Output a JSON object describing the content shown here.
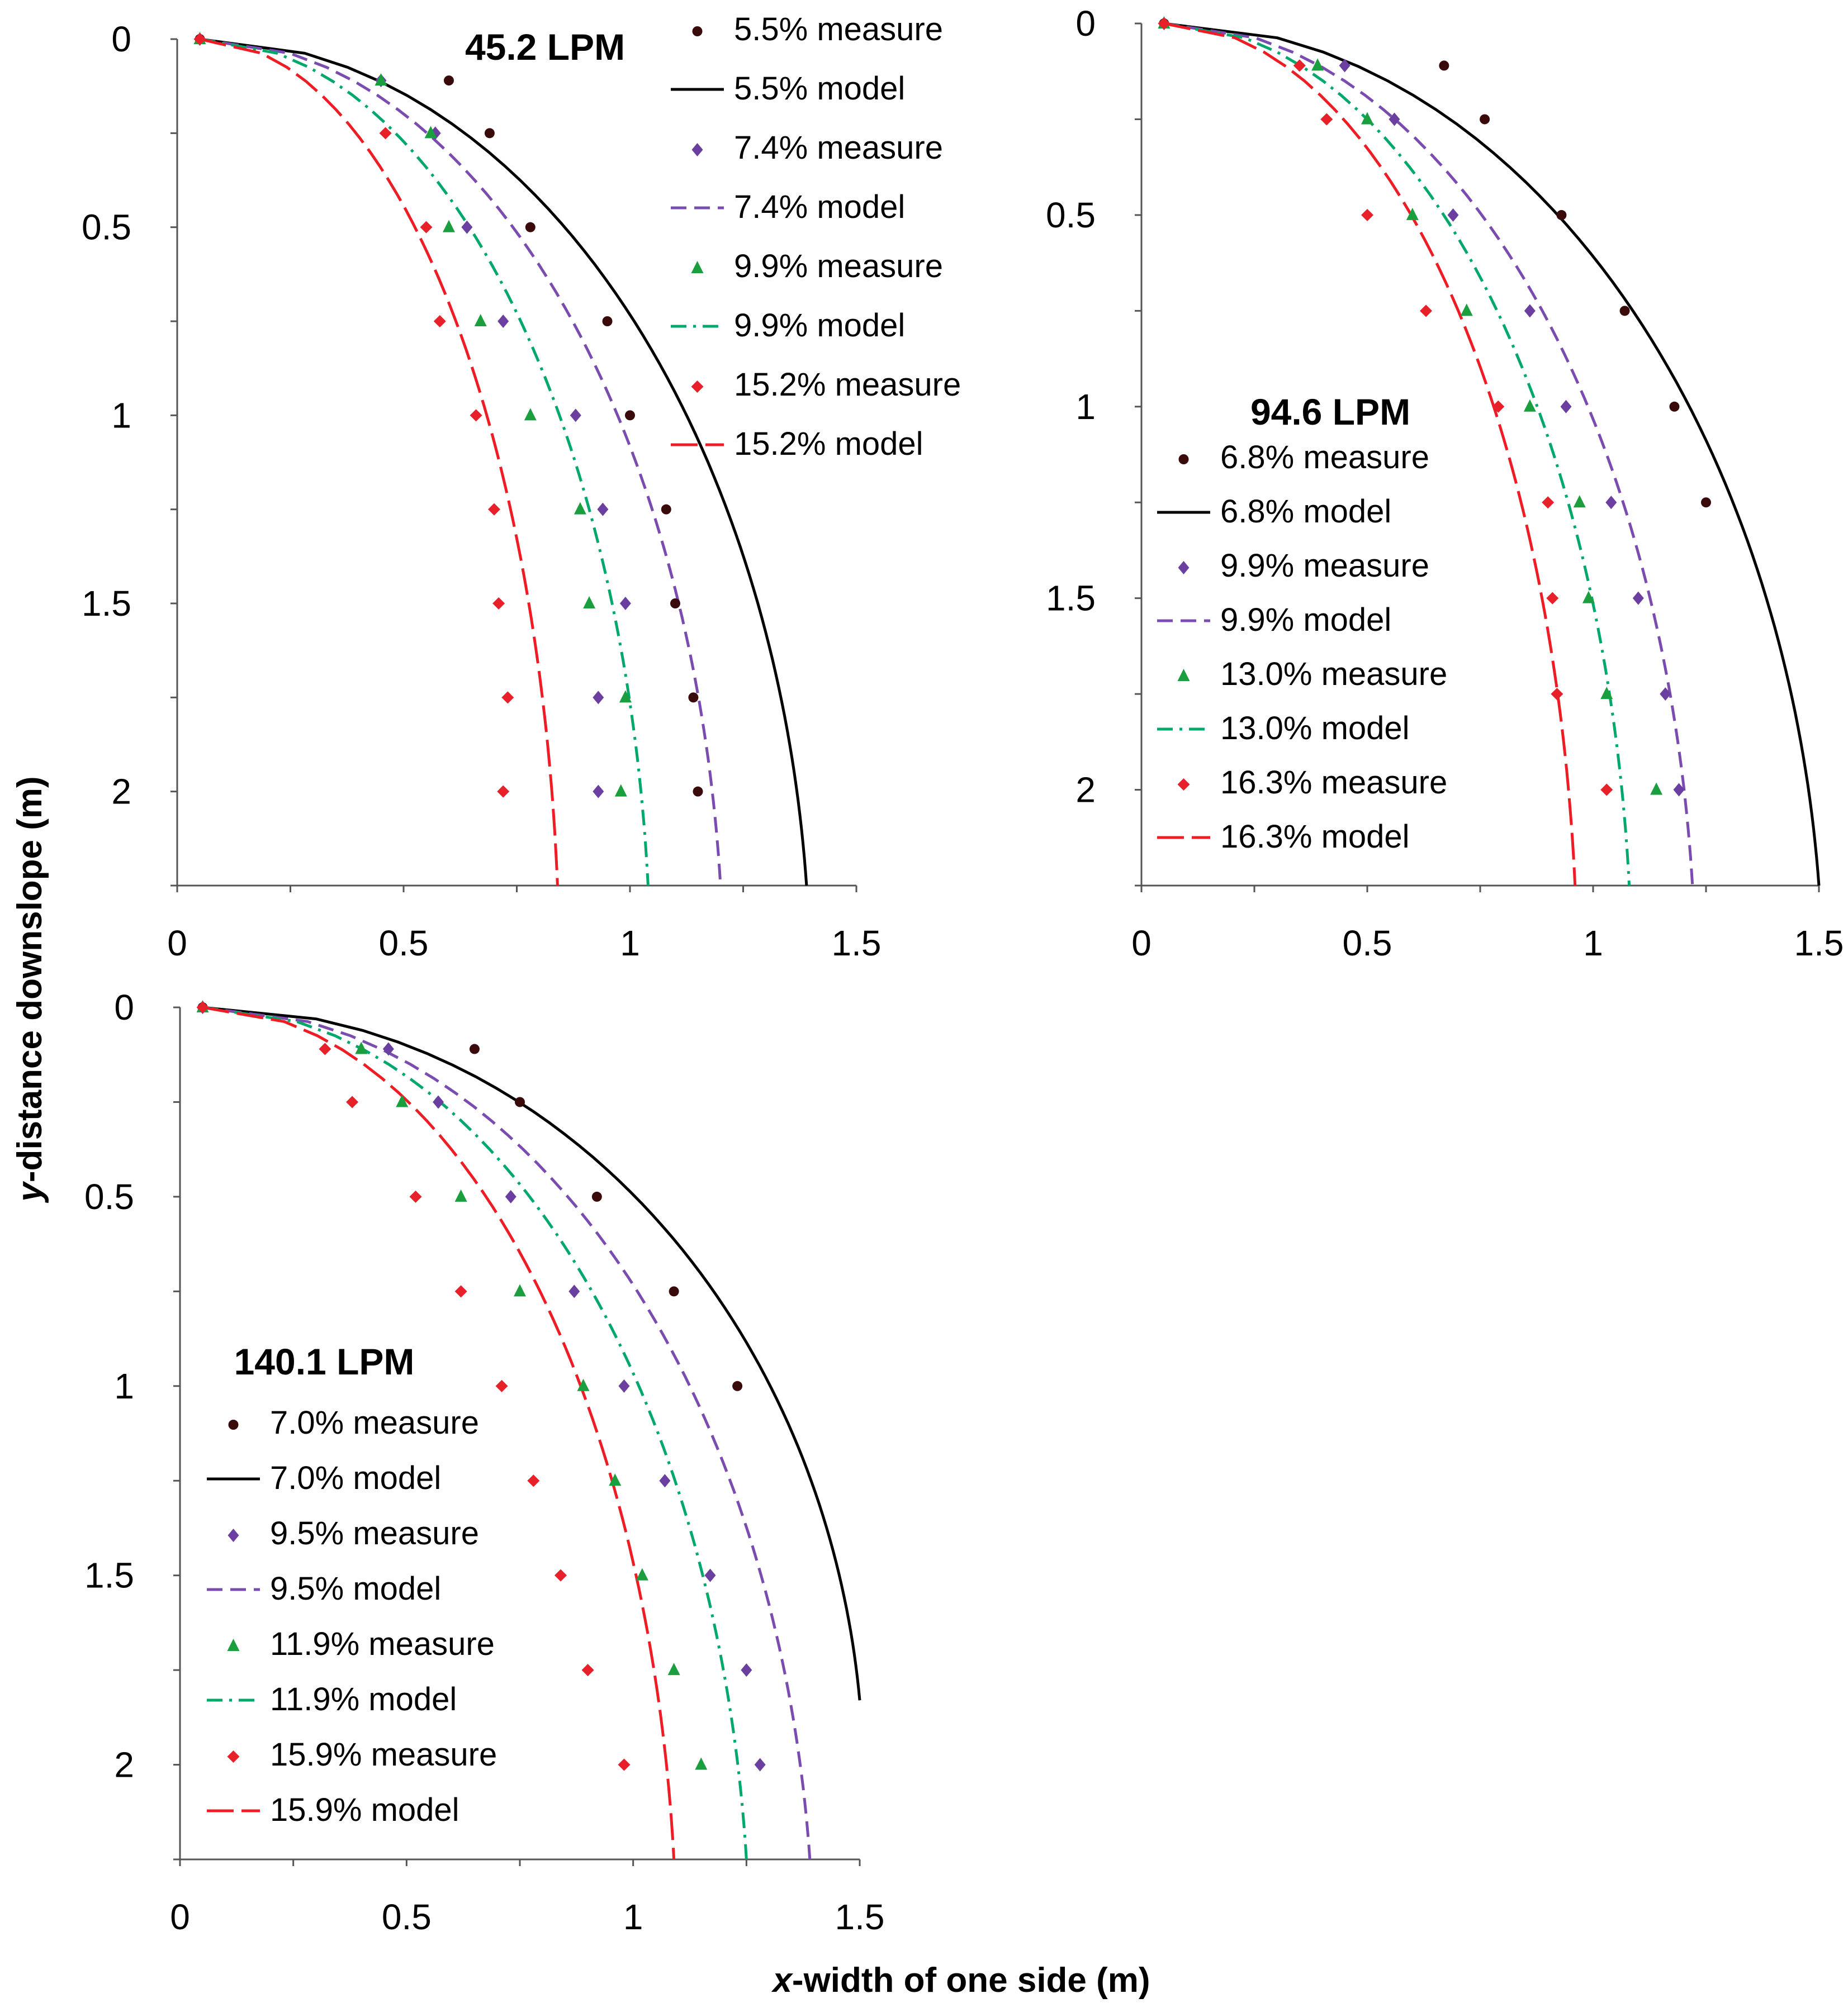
{
  "figure": {
    "ylabel_italic": "y",
    "ylabel_rest": "-distance downslope (m)",
    "xlabel_italic": "x",
    "xlabel_rest": "-width of one side (m)"
  },
  "chart_data": [
    {
      "type": "scatter",
      "title": "45.2 LPM",
      "xlim": [
        0,
        1.5
      ],
      "ylim": [
        0,
        2.25
      ],
      "y_inverted": true,
      "x_ticks": [
        "0",
        "0.5",
        "1",
        "1.5"
      ],
      "y_ticks": [
        "0",
        "0.5",
        "1",
        "1.5",
        "2"
      ],
      "legend_position": "top-right",
      "series": [
        {
          "name": "5.5% measure",
          "kind": "measure",
          "color": "#3a0a0a",
          "marker": "circle",
          "points": [
            [
              0.05,
              0
            ],
            [
              0.6,
              0.11
            ],
            [
              0.69,
              0.25
            ],
            [
              0.78,
              0.5
            ],
            [
              0.95,
              0.75
            ],
            [
              1.0,
              1.0
            ],
            [
              1.08,
              1.25
            ],
            [
              1.1,
              1.5
            ],
            [
              1.14,
              1.75
            ],
            [
              1.15,
              2.0
            ]
          ]
        },
        {
          "name": "5.5% model",
          "kind": "model",
          "color": "#000000",
          "dash": "",
          "x_end": 1.39
        },
        {
          "name": "7.4% measure",
          "kind": "measure",
          "color": "#6a3fa0",
          "marker": "diamond",
          "points": [
            [
              0.05,
              0
            ],
            [
              0.45,
              0.11
            ],
            [
              0.57,
              0.25
            ],
            [
              0.64,
              0.5
            ],
            [
              0.72,
              0.75
            ],
            [
              0.88,
              1.0
            ],
            [
              0.94,
              1.25
            ],
            [
              0.99,
              1.5
            ],
            [
              0.93,
              1.75
            ],
            [
              0.93,
              2.0
            ]
          ]
        },
        {
          "name": "7.4% model",
          "kind": "model",
          "color": "#7a4cb0",
          "dash": "28,14",
          "x_end": 1.2
        },
        {
          "name": "9.9% measure",
          "kind": "measure",
          "color": "#1a9e3e",
          "marker": "triangle",
          "points": [
            [
              0.05,
              0
            ],
            [
              0.45,
              0.11
            ],
            [
              0.56,
              0.25
            ],
            [
              0.6,
              0.5
            ],
            [
              0.67,
              0.75
            ],
            [
              0.78,
              1.0
            ],
            [
              0.89,
              1.25
            ],
            [
              0.91,
              1.5
            ],
            [
              0.99,
              1.75
            ],
            [
              0.98,
              2.0
            ]
          ]
        },
        {
          "name": "9.9% model",
          "kind": "model",
          "color": "#00a86b",
          "dash": "28,12,5,12",
          "x_end": 1.04
        },
        {
          "name": "15.2% measure",
          "kind": "measure",
          "color": "#e8202a",
          "marker": "cross",
          "points": [
            [
              0.05,
              0
            ],
            [
              0.46,
              0.25
            ],
            [
              0.55,
              0.5
            ],
            [
              0.58,
              0.75
            ],
            [
              0.66,
              1.0
            ],
            [
              0.7,
              1.25
            ],
            [
              0.71,
              1.5
            ],
            [
              0.73,
              1.75
            ],
            [
              0.72,
              2.0
            ]
          ]
        },
        {
          "name": "15.2% model",
          "kind": "model",
          "color": "#ee1c24",
          "dash": "48,14",
          "x_end": 0.84
        }
      ]
    },
    {
      "type": "scatter",
      "title": "94.6 LPM",
      "xlim": [
        0,
        1.5
      ],
      "ylim": [
        0,
        2.25
      ],
      "y_inverted": true,
      "x_ticks": [
        "0",
        "0.5",
        "1",
        "1.5"
      ],
      "y_ticks": [
        "0",
        "0.5",
        "1",
        "1.5",
        "2"
      ],
      "legend_position": "middle-left",
      "series": [
        {
          "name": "6.8% measure",
          "kind": "measure",
          "color": "#3a0a0a",
          "marker": "circle",
          "points": [
            [
              0.05,
              0
            ],
            [
              0.67,
              0.11
            ],
            [
              0.76,
              0.25
            ],
            [
              0.93,
              0.5
            ],
            [
              1.07,
              0.75
            ],
            [
              1.18,
              1.0
            ],
            [
              1.25,
              1.25
            ]
          ]
        },
        {
          "name": "6.8% model",
          "kind": "model",
          "color": "#000000",
          "dash": "",
          "x_end": 1.5
        },
        {
          "name": "9.9% measure",
          "kind": "measure",
          "color": "#6a3fa0",
          "marker": "diamond",
          "points": [
            [
              0.05,
              0
            ],
            [
              0.45,
              0.11
            ],
            [
              0.56,
              0.25
            ],
            [
              0.69,
              0.5
            ],
            [
              0.86,
              0.75
            ],
            [
              0.94,
              1.0
            ],
            [
              1.04,
              1.25
            ],
            [
              1.1,
              1.5
            ],
            [
              1.16,
              1.75
            ],
            [
              1.19,
              2.0
            ]
          ]
        },
        {
          "name": "9.9% model",
          "kind": "model",
          "color": "#7a4cb0",
          "dash": "28,14",
          "x_end": 1.22
        },
        {
          "name": "13.0% measure",
          "kind": "measure",
          "color": "#1a9e3e",
          "marker": "triangle",
          "points": [
            [
              0.05,
              0
            ],
            [
              0.39,
              0.11
            ],
            [
              0.5,
              0.25
            ],
            [
              0.6,
              0.5
            ],
            [
              0.72,
              0.75
            ],
            [
              0.86,
              1.0
            ],
            [
              0.97,
              1.25
            ],
            [
              0.99,
              1.5
            ],
            [
              1.03,
              1.75
            ],
            [
              1.14,
              2.0
            ]
          ]
        },
        {
          "name": "13.0% model",
          "kind": "model",
          "color": "#00a86b",
          "dash": "28,12,5,12",
          "x_end": 1.08
        },
        {
          "name": "16.3% measure",
          "kind": "measure",
          "color": "#e8202a",
          "marker": "cross",
          "points": [
            [
              0.05,
              0
            ],
            [
              0.35,
              0.11
            ],
            [
              0.41,
              0.25
            ],
            [
              0.5,
              0.5
            ],
            [
              0.63,
              0.75
            ],
            [
              0.79,
              1.0
            ],
            [
              0.9,
              1.25
            ],
            [
              0.91,
              1.5
            ],
            [
              0.92,
              1.75
            ],
            [
              1.03,
              2.0
            ]
          ]
        },
        {
          "name": "16.3% model",
          "kind": "model",
          "color": "#ee1c24",
          "dash": "48,14",
          "x_end": 0.96
        }
      ]
    },
    {
      "type": "scatter",
      "title": "140.1 LPM",
      "xlim": [
        0,
        1.5
      ],
      "ylim": [
        0,
        2.25
      ],
      "y_inverted": true,
      "x_ticks": [
        "0",
        "0.5",
        "1",
        "1.5"
      ],
      "y_ticks": [
        "0",
        "0.5",
        "1",
        "1.5",
        "2"
      ],
      "legend_position": "bottom-left",
      "series": [
        {
          "name": "7.0% measure",
          "kind": "measure",
          "color": "#3a0a0a",
          "marker": "circle",
          "points": [
            [
              0.05,
              0
            ],
            [
              0.65,
              0.11
            ],
            [
              0.75,
              0.25
            ],
            [
              0.92,
              0.5
            ],
            [
              1.09,
              0.75
            ],
            [
              1.23,
              1.0
            ]
          ]
        },
        {
          "name": "7.0% model",
          "kind": "model",
          "color": "#000000",
          "dash": "",
          "y_end": 1.83
        },
        {
          "name": "9.5% measure",
          "kind": "measure",
          "color": "#6a3fa0",
          "marker": "diamond",
          "points": [
            [
              0.05,
              0
            ],
            [
              0.46,
              0.11
            ],
            [
              0.57,
              0.25
            ],
            [
              0.73,
              0.5
            ],
            [
              0.87,
              0.75
            ],
            [
              0.98,
              1.0
            ],
            [
              1.07,
              1.25
            ],
            [
              1.17,
              1.5
            ],
            [
              1.25,
              1.75
            ],
            [
              1.28,
              2.0
            ]
          ]
        },
        {
          "name": "9.5% model",
          "kind": "model",
          "color": "#7a4cb0",
          "dash": "28,14",
          "x_end": 1.39
        },
        {
          "name": "11.9% measure",
          "kind": "measure",
          "color": "#1a9e3e",
          "marker": "triangle",
          "points": [
            [
              0.05,
              0
            ],
            [
              0.4,
              0.11
            ],
            [
              0.49,
              0.25
            ],
            [
              0.62,
              0.5
            ],
            [
              0.75,
              0.75
            ],
            [
              0.89,
              1.0
            ],
            [
              0.96,
              1.25
            ],
            [
              1.02,
              1.5
            ],
            [
              1.09,
              1.75
            ],
            [
              1.15,
              2.0
            ]
          ]
        },
        {
          "name": "11.9% model",
          "kind": "model",
          "color": "#00a86b",
          "dash": "28,12,5,12",
          "x_end": 1.25
        },
        {
          "name": "15.9% measure",
          "kind": "measure",
          "color": "#e8202a",
          "marker": "cross",
          "points": [
            [
              0.05,
              0
            ],
            [
              0.32,
              0.11
            ],
            [
              0.38,
              0.25
            ],
            [
              0.52,
              0.5
            ],
            [
              0.62,
              0.75
            ],
            [
              0.71,
              1.0
            ],
            [
              0.78,
              1.25
            ],
            [
              0.84,
              1.5
            ],
            [
              0.9,
              1.75
            ],
            [
              0.98,
              2.0
            ]
          ]
        },
        {
          "name": "15.9% model",
          "kind": "model",
          "color": "#ee1c24",
          "dash": "48,14",
          "x_end": 1.09
        }
      ]
    }
  ]
}
